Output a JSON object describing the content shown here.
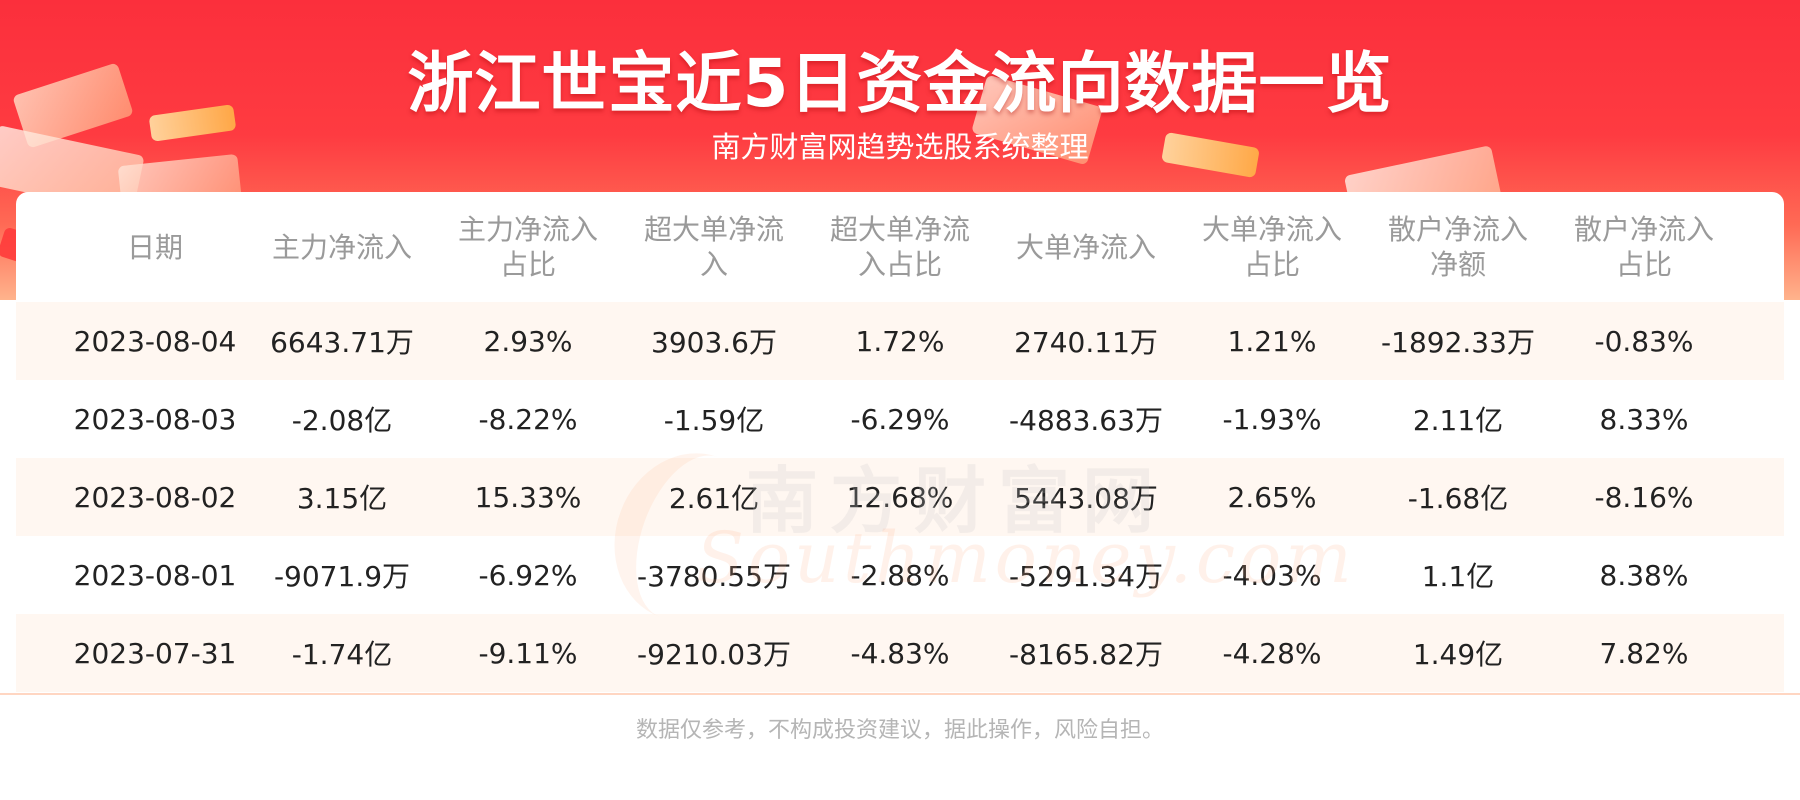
{
  "header": {
    "title": "浙江世宝近5日资金流向数据一览",
    "subtitle": "南方财富网趋势选股系统整理"
  },
  "watermark": {
    "cn": "南方财富网",
    "en": "Southmoney.com"
  },
  "table": {
    "columns": [
      "日期",
      "主力净流入",
      "主力净流入占比",
      "超大单净流入",
      "超大单净流入占比",
      "大单净流入",
      "大单净流入占比",
      "散户净流入净额",
      "散户净流入占比"
    ],
    "rows": [
      [
        "2023-08-04",
        "6643.71万",
        "2.93%",
        "3903.6万",
        "1.72%",
        "2740.11万",
        "1.21%",
        "-1892.33万",
        "-0.83%"
      ],
      [
        "2023-08-03",
        "-2.08亿",
        "-8.22%",
        "-1.59亿",
        "-6.29%",
        "-4883.63万",
        "-1.93%",
        "2.11亿",
        "8.33%"
      ],
      [
        "2023-08-02",
        "3.15亿",
        "15.33%",
        "2.61亿",
        "12.68%",
        "5443.08万",
        "2.65%",
        "-1.68亿",
        "-8.16%"
      ],
      [
        "2023-08-01",
        "-9071.9万",
        "-6.92%",
        "-3780.55万",
        "-2.88%",
        "-5291.34万",
        "-4.03%",
        "1.1亿",
        "8.38%"
      ],
      [
        "2023-07-31",
        "-1.74亿",
        "-9.11%",
        "-9210.03万",
        "-4.83%",
        "-8165.82万",
        "-4.28%",
        "1.49亿",
        "7.82%"
      ]
    ]
  },
  "footer": {
    "disclaimer": "数据仅参考，不构成投资建议，据此操作，风险自担。"
  },
  "colors": {
    "banner_red": "#fb2f3c",
    "row_stripe": "#fff7f1",
    "header_text": "#9a9a9a",
    "cell_text": "#222222"
  }
}
